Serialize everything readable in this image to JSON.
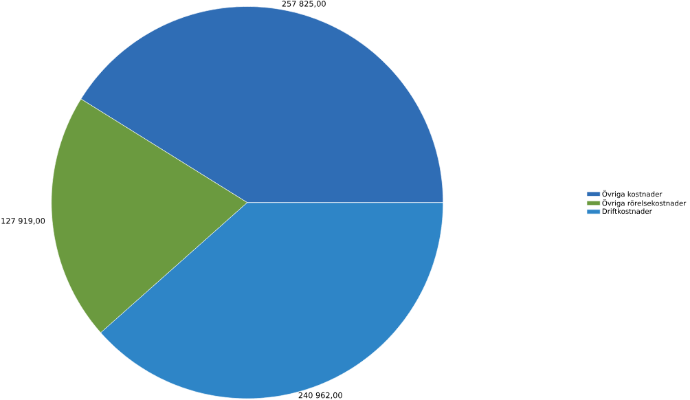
{
  "chart_data": {
    "type": "pie",
    "categories": [
      "Övriga kostnader",
      "Övriga rörelsekostnader",
      "Driftkostnader"
    ],
    "values": [
      257825,
      127919,
      240962
    ],
    "value_labels": [
      "257 825,00",
      "127 919,00",
      "240 962,00"
    ],
    "colors": [
      "#2f6db5",
      "#6b9a3f",
      "#2e85c7"
    ],
    "legend": "right"
  }
}
